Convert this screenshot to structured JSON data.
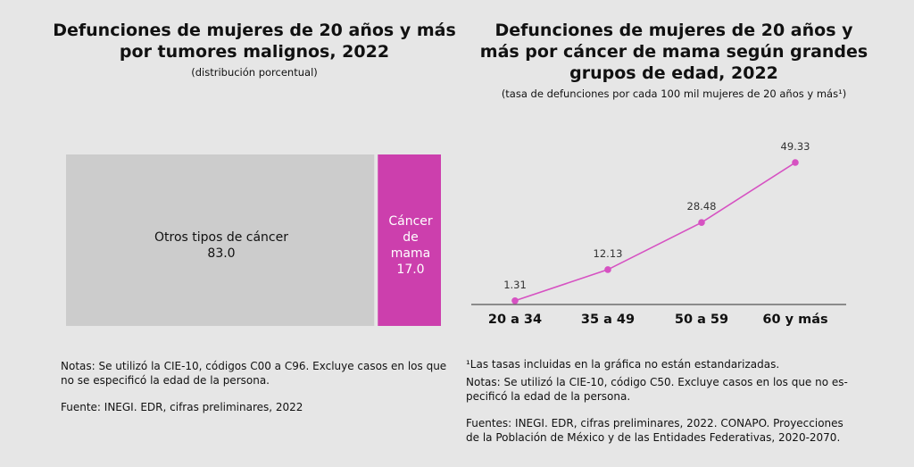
{
  "colors": {
    "background": "#e6e6e6",
    "other": "#cccccc",
    "breast": "#cc3fad",
    "line": "#d652c2",
    "axis": "#555555"
  },
  "left": {
    "title_line1": "Defunciones de mujeres de 20 años y más",
    "title_line2": "por tumores malignos, 2022",
    "subtitle": "(distribución porcentual)",
    "note1": "Notas: Se utilizó la CIE-10, códigos C00 a C96. Excluye casos en los que",
    "note2": "no se especificó la edad de la persona.",
    "source": "Fuente: INEGI. EDR, cifras preliminares, 2022"
  },
  "right": {
    "title_line1": "Defunciones de mujeres de 20 años y",
    "title_line2": "más por cáncer de mama según grandes",
    "title_line3": "grupos de edad, 2022",
    "subtitle": "(tasa de defunciones por cada 100 mil mujeres de 20 años y más¹)",
    "footnote": "¹Las tasas incluidas en la gráfica no están estandarizadas.",
    "note1": "Notas: Se utilizó la CIE-10, código C50. Excluye casos en los que no es-",
    "note2": "pecificó la edad de la persona.",
    "source1": "Fuentes: INEGI. EDR, cifras preliminares, 2022. CONAPO. Proyecciones",
    "source2": "de la Población de México y de las Entidades Federativas, 2020-2070."
  },
  "chart_data": [
    {
      "type": "bar",
      "subtype": "stacked-100",
      "title": "Defunciones de mujeres de 20 años y más por tumores malignos, 2022",
      "subtitle": "(distribución porcentual)",
      "categories": [
        "Otros tipos de cáncer",
        "Cáncer de mama"
      ],
      "values": [
        83.0,
        17.0
      ],
      "labels": [
        [
          "Otros tipos de cáncer",
          "83.0"
        ],
        [
          "Cáncer",
          "de",
          "mama",
          "17.0"
        ]
      ]
    },
    {
      "type": "line",
      "title": "Defunciones de mujeres de 20 años y más por cáncer de mama según grandes grupos de edad, 2022",
      "subtitle": "(tasa de defunciones por cada 100 mil mujeres de 20 años y más¹)",
      "categories": [
        "20 a 34",
        "35 a 49",
        "50 a 59",
        "60 y más"
      ],
      "values": [
        1.31,
        12.13,
        28.48,
        49.33
      ],
      "labels": [
        "1.31",
        "12.13",
        "28.48",
        "49.33"
      ],
      "ylim": [
        0,
        50
      ],
      "grid": false
    }
  ]
}
